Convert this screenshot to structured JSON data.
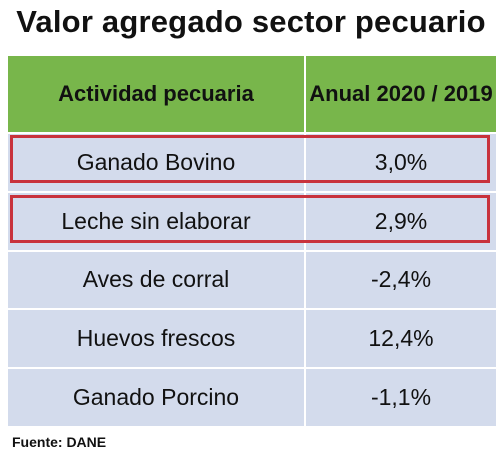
{
  "title": "Valor agregado sector pecuario",
  "table": {
    "headers": [
      "Actividad pecuaria",
      "Anual 2020 / 2019"
    ],
    "rows": [
      {
        "activity": "Ganado Bovino",
        "value": "3,0%"
      },
      {
        "activity": "Leche sin elaborar",
        "value": "2,9%"
      },
      {
        "activity": "Aves de corral",
        "value": "-2,4%"
      },
      {
        "activity": "Huevos frescos",
        "value": "12,4%"
      },
      {
        "activity": "Ganado Porcino",
        "value": "-1,1%"
      }
    ]
  },
  "source": "Fuente: DANE",
  "colors": {
    "header_bg": "#78b64b",
    "row_bg": "#d3dbec",
    "highlight_border": "#c8323c"
  }
}
